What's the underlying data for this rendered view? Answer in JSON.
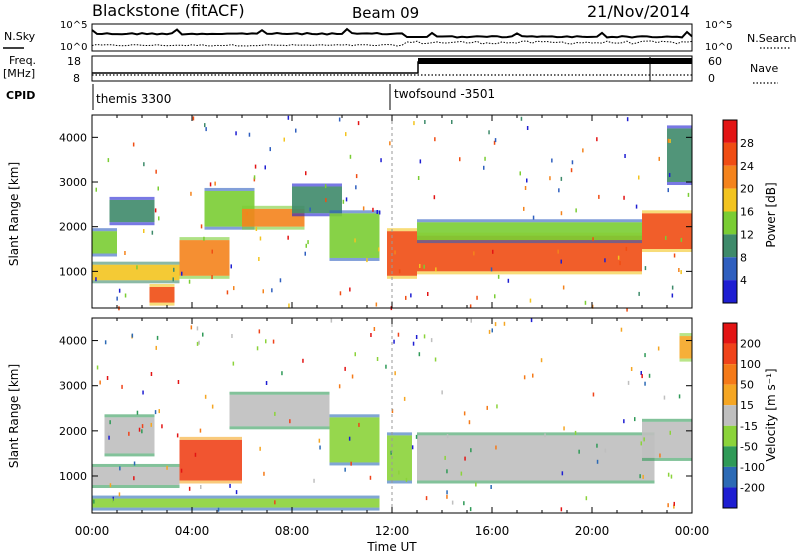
{
  "header": {
    "station": "Blackstone (fitACF)",
    "beam": "Beam 09",
    "date": "21/Nov/2014"
  },
  "params": {
    "nsky_label": "N.Sky",
    "nsearch_label": "N.Search",
    "freq_label": "Freq.",
    "freq_unit": "[MHz]",
    "nave_label": "Nave",
    "cpid_label": "CPID",
    "noise_ticks_left": [
      "10^5",
      "10^0"
    ],
    "noise_ticks_right": [
      "10^5",
      "10^0"
    ],
    "freq_ticks": [
      "18",
      "8"
    ],
    "nave_ticks": [
      "60",
      "0"
    ],
    "cpid_segments": [
      {
        "name": "themis 3300",
        "start_hour": 0.0,
        "end_hour": 12.0
      },
      {
        "name": "twofsound -3501",
        "start_hour": 12.0,
        "end_hour": 24.0
      }
    ]
  },
  "x_axis": {
    "label": "Time UT",
    "ticks": [
      "00:00",
      "04:00",
      "08:00",
      "12:00",
      "16:00",
      "20:00",
      "00:00"
    ],
    "range_hours": [
      0,
      24
    ]
  },
  "y_axis": {
    "label": "Slant Range [km]",
    "ticks": [
      "1000",
      "2000",
      "3000",
      "4000"
    ],
    "range_km": [
      180,
      4500
    ]
  },
  "colorbars": {
    "power": {
      "label": "Power [dB]",
      "ticks": [
        "4",
        "8",
        "12",
        "16",
        "20",
        "24",
        "28"
      ],
      "colors": [
        "#1e1ed2",
        "#2f5fbf",
        "#3e8a6a",
        "#7acd33",
        "#f3c41f",
        "#f4831c",
        "#f04d13",
        "#e31414"
      ]
    },
    "velocity": {
      "label": "Velocity [m s⁻¹]",
      "ticks": [
        "200",
        "100",
        "50",
        "15",
        "-15",
        "-50",
        "-100",
        "-200"
      ],
      "colors": [
        "#1e1ed2",
        "#2c6ab5",
        "#2f9a57",
        "#8bd33a",
        "#bfbfbf",
        "#f5a623",
        "#f57a18",
        "#f0431a",
        "#e31414"
      ]
    }
  },
  "chart_data": [
    {
      "type": "heatmap",
      "title": "Power",
      "xlabel": "Time UT",
      "ylabel": "Slant Range [km]",
      "xlim": [
        0,
        24
      ],
      "ylim": [
        180,
        4500
      ],
      "colorbar_label": "Power [dB]",
      "series": [
        {
          "name": "",
          "values": [
            {
              "t0": 0.0,
              "t1": 1.0,
              "r0": 1400,
              "r1": 1900,
              "level": 3
            },
            {
              "t0": 0.0,
              "t1": 3.5,
              "r0": 800,
              "r1": 1150,
              "level": 4
            },
            {
              "t0": 0.7,
              "t1": 2.5,
              "r0": 2100,
              "r1": 2600,
              "level": 2
            },
            {
              "t0": 2.3,
              "t1": 3.3,
              "r0": 300,
              "r1": 650,
              "level": 6
            },
            {
              "t0": 3.5,
              "t1": 5.5,
              "r0": 900,
              "r1": 1700,
              "level": 5
            },
            {
              "t0": 4.5,
              "t1": 6.5,
              "r0": 2000,
              "r1": 2800,
              "level": 3
            },
            {
              "t0": 6.0,
              "t1": 8.5,
              "r0": 2000,
              "r1": 2400,
              "level": 5
            },
            {
              "t0": 8.0,
              "t1": 10.0,
              "r0": 2300,
              "r1": 2900,
              "level": 2
            },
            {
              "t0": 9.5,
              "t1": 11.5,
              "r0": 1300,
              "r1": 2300,
              "level": 3
            },
            {
              "t0": 11.8,
              "t1": 13.0,
              "r0": 900,
              "r1": 1900,
              "level": 6
            },
            {
              "t0": 13.0,
              "t1": 22.0,
              "r0": 1000,
              "r1": 1800,
              "level": 6
            },
            {
              "t0": 13.0,
              "t1": 22.0,
              "r0": 1700,
              "r1": 2100,
              "level": 3
            },
            {
              "t0": 22.0,
              "t1": 24.0,
              "r0": 1500,
              "r1": 2300,
              "level": 6
            },
            {
              "t0": 23.0,
              "t1": 24.0,
              "r0": 3000,
              "r1": 4200,
              "level": 2
            }
          ]
        }
      ]
    },
    {
      "type": "heatmap",
      "title": "Velocity",
      "xlabel": "Time UT",
      "ylabel": "Slant Range [km]",
      "xlim": [
        0,
        24
      ],
      "ylim": [
        180,
        4500
      ],
      "colorbar_label": "Velocity [m s⁻¹]",
      "series": [
        {
          "name": "",
          "values": [
            {
              "t0": 0.0,
              "t1": 3.5,
              "r0": 800,
              "r1": 1200,
              "level": 4
            },
            {
              "t0": 0.5,
              "t1": 2.5,
              "r0": 1500,
              "r1": 2300,
              "level": 4
            },
            {
              "t0": 0.0,
              "t1": 11.5,
              "r0": 300,
              "r1": 500,
              "level": 3
            },
            {
              "t0": 3.5,
              "t1": 6.0,
              "r0": 900,
              "r1": 1800,
              "level": 7
            },
            {
              "t0": 5.5,
              "t1": 9.5,
              "r0": 2100,
              "r1": 2800,
              "level": 4
            },
            {
              "t0": 9.5,
              "t1": 11.5,
              "r0": 1300,
              "r1": 2300,
              "level": 3
            },
            {
              "t0": 11.8,
              "t1": 12.8,
              "r0": 900,
              "r1": 1900,
              "level": 3
            },
            {
              "t0": 13.0,
              "t1": 22.5,
              "r0": 900,
              "r1": 1900,
              "level": 4
            },
            {
              "t0": 22.0,
              "t1": 24.0,
              "r0": 1400,
              "r1": 2200,
              "level": 4
            },
            {
              "t0": 23.5,
              "t1": 24.0,
              "r0": 3600,
              "r1": 4100,
              "level": 5
            }
          ]
        }
      ]
    }
  ]
}
